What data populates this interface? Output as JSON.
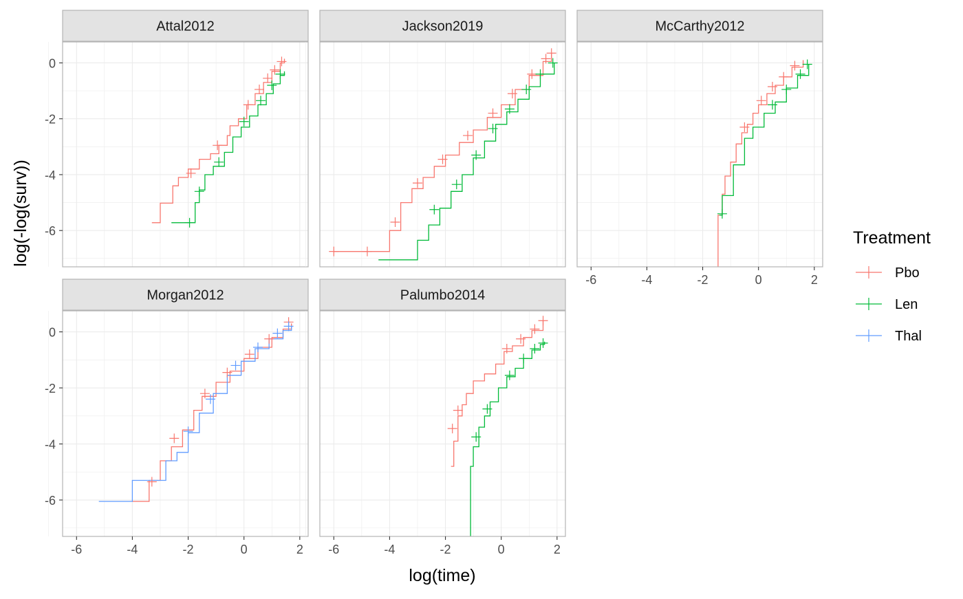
{
  "x_axis_label": "log(time)",
  "y_axis_label": "log(-log(surv))",
  "legend": {
    "title": "Treatment",
    "items": [
      {
        "label": "Pbo",
        "color": "#F8766D"
      },
      {
        "label": "Len",
        "color": "#00BA38"
      },
      {
        "label": "Thal",
        "color": "#619CFF"
      }
    ]
  },
  "chart_data": {
    "type": "line",
    "facet": "step",
    "xlim": [
      -6.5,
      2.3
    ],
    "ylim": [
      -7.3,
      0.75
    ],
    "x_ticks": [
      -6,
      -4,
      -2,
      0,
      2
    ],
    "y_ticks": [
      0,
      -2,
      -4,
      -6
    ],
    "x_tick_labels": [
      "-6",
      "-4",
      "-2",
      "0",
      "2"
    ],
    "y_tick_labels": [
      "0",
      "-2",
      "-4",
      "-6"
    ],
    "grid": true,
    "legend_position": "right",
    "panels": [
      {
        "title": "Attal2012",
        "series": [
          {
            "name": "Pbo",
            "points": [
              [
                -3.3,
                -5.72
              ],
              [
                -3.0,
                -5.02
              ],
              [
                -2.55,
                -4.4
              ],
              [
                -2.35,
                -4.1
              ],
              [
                -2.0,
                -3.8
              ],
              [
                -1.6,
                -3.45
              ],
              [
                -1.2,
                -3.25
              ],
              [
                -0.9,
                -2.95
              ],
              [
                -0.6,
                -2.6
              ],
              [
                -0.5,
                -2.25
              ],
              [
                -0.2,
                -2.0
              ],
              [
                0.1,
                -1.5
              ],
              [
                0.4,
                -1.1
              ],
              [
                0.7,
                -0.7
              ],
              [
                1.0,
                -0.3
              ],
              [
                1.3,
                0.0
              ],
              [
                1.45,
                0.15
              ]
            ]
          },
          {
            "name": "Len",
            "points": [
              [
                -2.6,
                -5.72
              ],
              [
                -1.9,
                -5.72
              ],
              [
                -1.75,
                -5.0
              ],
              [
                -1.6,
                -4.55
              ],
              [
                -1.4,
                -4.0
              ],
              [
                -1.1,
                -3.7
              ],
              [
                -0.7,
                -3.2
              ],
              [
                -0.4,
                -2.65
              ],
              [
                -0.1,
                -2.3
              ],
              [
                0.2,
                -1.9
              ],
              [
                0.5,
                -1.5
              ],
              [
                0.8,
                -1.1
              ],
              [
                1.05,
                -0.75
              ],
              [
                1.3,
                -0.45
              ],
              [
                1.45,
                -0.3
              ]
            ]
          }
        ],
        "censor_marks": [
          {
            "name": "Pbo",
            "points": [
              [
                -1.9,
                -3.95
              ],
              [
                -0.95,
                -2.95
              ],
              [
                0.15,
                -1.5
              ],
              [
                0.55,
                -0.95
              ],
              [
                0.85,
                -0.55
              ],
              [
                1.1,
                -0.25
              ],
              [
                1.35,
                0.05
              ]
            ]
          },
          {
            "name": "Len",
            "points": [
              [
                -1.95,
                -5.72
              ],
              [
                -1.6,
                -4.6
              ],
              [
                -0.9,
                -3.55
              ],
              [
                0.0,
                -2.1
              ],
              [
                0.6,
                -1.35
              ],
              [
                1.0,
                -0.8
              ],
              [
                1.3,
                -0.4
              ]
            ]
          }
        ]
      },
      {
        "title": "Jackson2019",
        "series": [
          {
            "name": "Pbo",
            "points": [
              [
                -6.0,
                -6.75
              ],
              [
                -4.4,
                -6.75
              ],
              [
                -4.0,
                -6.0
              ],
              [
                -3.6,
                -5.0
              ],
              [
                -3.2,
                -4.5
              ],
              [
                -2.8,
                -4.1
              ],
              [
                -2.4,
                -3.7
              ],
              [
                -2.0,
                -3.3
              ],
              [
                -1.5,
                -2.85
              ],
              [
                -1.0,
                -2.4
              ],
              [
                -0.5,
                -1.95
              ],
              [
                0.0,
                -1.5
              ],
              [
                0.5,
                -0.95
              ],
              [
                1.0,
                -0.45
              ],
              [
                1.5,
                0.05
              ],
              [
                1.8,
                0.35
              ]
            ]
          },
          {
            "name": "Len",
            "points": [
              [
                -4.4,
                -7.05
              ],
              [
                -3.2,
                -7.05
              ],
              [
                -3.0,
                -6.35
              ],
              [
                -2.6,
                -5.8
              ],
              [
                -2.2,
                -5.2
              ],
              [
                -1.8,
                -4.6
              ],
              [
                -1.4,
                -4.0
              ],
              [
                -1.0,
                -3.4
              ],
              [
                -0.6,
                -2.8
              ],
              [
                -0.2,
                -2.2
              ],
              [
                0.2,
                -1.75
              ],
              [
                0.6,
                -1.3
              ],
              [
                1.0,
                -0.85
              ],
              [
                1.4,
                -0.4
              ],
              [
                1.9,
                0.0
              ]
            ]
          }
        ],
        "censor_marks": [
          {
            "name": "Pbo",
            "points": [
              [
                -6.0,
                -6.75
              ],
              [
                -4.8,
                -6.75
              ],
              [
                -3.8,
                -5.7
              ],
              [
                -3.0,
                -4.3
              ],
              [
                -2.1,
                -3.45
              ],
              [
                -1.2,
                -2.6
              ],
              [
                -0.3,
                -1.8
              ],
              [
                0.4,
                -1.1
              ],
              [
                1.1,
                -0.4
              ],
              [
                1.6,
                0.15
              ],
              [
                1.8,
                0.35
              ]
            ]
          },
          {
            "name": "Len",
            "points": [
              [
                -2.4,
                -5.25
              ],
              [
                -1.6,
                -4.35
              ],
              [
                -0.9,
                -3.3
              ],
              [
                -0.3,
                -2.35
              ],
              [
                0.3,
                -1.65
              ],
              [
                0.9,
                -0.95
              ],
              [
                1.4,
                -0.4
              ],
              [
                1.85,
                0.0
              ]
            ]
          }
        ]
      },
      {
        "title": "McCarthy2012",
        "series": [
          {
            "name": "Pbo",
            "points": [
              [
                -1.5,
                -7.5
              ],
              [
                -1.45,
                -5.45
              ],
              [
                -1.3,
                -4.7
              ],
              [
                -1.2,
                -4.05
              ],
              [
                -1.0,
                -3.55
              ],
              [
                -0.8,
                -2.9
              ],
              [
                -0.6,
                -2.5
              ],
              [
                -0.4,
                -2.2
              ],
              [
                -0.2,
                -1.8
              ],
              [
                0.0,
                -1.5
              ],
              [
                0.3,
                -1.1
              ],
              [
                0.6,
                -0.8
              ],
              [
                0.9,
                -0.5
              ],
              [
                1.2,
                -0.15
              ],
              [
                1.6,
                0.1
              ]
            ]
          },
          {
            "name": "Len",
            "points": [
              [
                -1.4,
                -5.45
              ],
              [
                -1.3,
                -4.75
              ],
              [
                -1.0,
                -4.75
              ],
              [
                -0.9,
                -3.65
              ],
              [
                -0.6,
                -3.65
              ],
              [
                -0.5,
                -2.7
              ],
              [
                -0.2,
                -2.3
              ],
              [
                0.2,
                -1.8
              ],
              [
                0.6,
                -1.4
              ],
              [
                1.0,
                -0.9
              ],
              [
                1.4,
                -0.45
              ],
              [
                1.8,
                -0.05
              ]
            ]
          }
        ],
        "censor_marks": [
          {
            "name": "Pbo",
            "points": [
              [
                -0.5,
                -2.3
              ],
              [
                0.1,
                -1.35
              ],
              [
                0.5,
                -0.85
              ],
              [
                0.9,
                -0.5
              ],
              [
                1.3,
                -0.1
              ]
            ]
          },
          {
            "name": "Len",
            "points": [
              [
                -1.3,
                -5.4
              ],
              [
                0.5,
                -1.5
              ],
              [
                1.0,
                -0.95
              ],
              [
                1.5,
                -0.4
              ],
              [
                1.75,
                -0.05
              ]
            ]
          }
        ]
      },
      {
        "title": "Morgan2012",
        "series": [
          {
            "name": "Pbo",
            "points": [
              [
                -4.0,
                -6.05
              ],
              [
                -3.6,
                -6.05
              ],
              [
                -3.4,
                -5.3
              ],
              [
                -3.0,
                -4.6
              ],
              [
                -2.6,
                -4.1
              ],
              [
                -2.2,
                -3.5
              ],
              [
                -1.8,
                -2.8
              ],
              [
                -1.5,
                -2.3
              ],
              [
                -1.0,
                -1.8
              ],
              [
                -0.5,
                -1.4
              ],
              [
                0.0,
                -0.95
              ],
              [
                0.5,
                -0.55
              ],
              [
                1.0,
                -0.2
              ],
              [
                1.4,
                0.1
              ],
              [
                1.7,
                0.3
              ]
            ]
          },
          {
            "name": "Thal",
            "points": [
              [
                -5.2,
                -6.05
              ],
              [
                -4.0,
                -6.05
              ],
              [
                -4.0,
                -5.3
              ],
              [
                -3.0,
                -5.3
              ],
              [
                -2.8,
                -4.6
              ],
              [
                -2.4,
                -4.3
              ],
              [
                -2.0,
                -3.6
              ],
              [
                -1.6,
                -2.9
              ],
              [
                -1.1,
                -2.2
              ],
              [
                -0.6,
                -1.55
              ],
              [
                -0.1,
                -1.05
              ],
              [
                0.4,
                -0.6
              ],
              [
                0.9,
                -0.25
              ],
              [
                1.4,
                0.05
              ],
              [
                1.7,
                0.2
              ]
            ]
          }
        ],
        "censor_marks": [
          {
            "name": "Pbo",
            "points": [
              [
                -3.3,
                -5.35
              ],
              [
                -2.5,
                -3.8
              ],
              [
                -1.4,
                -2.2
              ],
              [
                -0.6,
                -1.45
              ],
              [
                0.2,
                -0.8
              ],
              [
                0.9,
                -0.25
              ],
              [
                1.6,
                0.35
              ]
            ]
          },
          {
            "name": "Thal",
            "points": [
              [
                -2.0,
                -3.55
              ],
              [
                -1.2,
                -2.4
              ],
              [
                -0.3,
                -1.2
              ],
              [
                0.5,
                -0.55
              ],
              [
                1.2,
                -0.05
              ],
              [
                1.6,
                0.2
              ]
            ]
          }
        ]
      },
      {
        "title": "Palumbo2014",
        "series": [
          {
            "name": "Pbo",
            "points": [
              [
                -1.8,
                -4.8
              ],
              [
                -1.7,
                -3.9
              ],
              [
                -1.55,
                -3.0
              ],
              [
                -1.4,
                -2.6
              ],
              [
                -1.25,
                -2.2
              ],
              [
                -1.0,
                -1.75
              ],
              [
                -0.6,
                -1.5
              ],
              [
                -0.2,
                -1.15
              ],
              [
                0.1,
                -0.7
              ],
              [
                0.4,
                -0.5
              ],
              [
                0.8,
                -0.2
              ],
              [
                1.1,
                0.05
              ],
              [
                1.5,
                0.4
              ]
            ]
          },
          {
            "name": "Len",
            "points": [
              [
                -1.2,
                -7.5
              ],
              [
                -1.1,
                -4.8
              ],
              [
                -1.0,
                -4.1
              ],
              [
                -0.8,
                -3.4
              ],
              [
                -0.6,
                -3.0
              ],
              [
                -0.4,
                -2.5
              ],
              [
                -0.1,
                -2.0
              ],
              [
                0.2,
                -1.6
              ],
              [
                0.5,
                -1.3
              ],
              [
                0.8,
                -0.95
              ],
              [
                1.1,
                -0.65
              ],
              [
                1.4,
                -0.45
              ],
              [
                1.55,
                -0.35
              ]
            ]
          }
        ],
        "censor_marks": [
          {
            "name": "Pbo",
            "points": [
              [
                -1.75,
                -3.45
              ],
              [
                -1.55,
                -2.8
              ],
              [
                0.2,
                -0.6
              ],
              [
                0.7,
                -0.25
              ],
              [
                1.2,
                0.1
              ],
              [
                1.5,
                0.4
              ]
            ]
          },
          {
            "name": "Len",
            "points": [
              [
                -0.9,
                -3.75
              ],
              [
                -0.5,
                -2.75
              ],
              [
                0.3,
                -1.55
              ],
              [
                0.8,
                -0.95
              ],
              [
                1.2,
                -0.6
              ],
              [
                1.5,
                -0.4
              ]
            ]
          }
        ]
      }
    ]
  }
}
